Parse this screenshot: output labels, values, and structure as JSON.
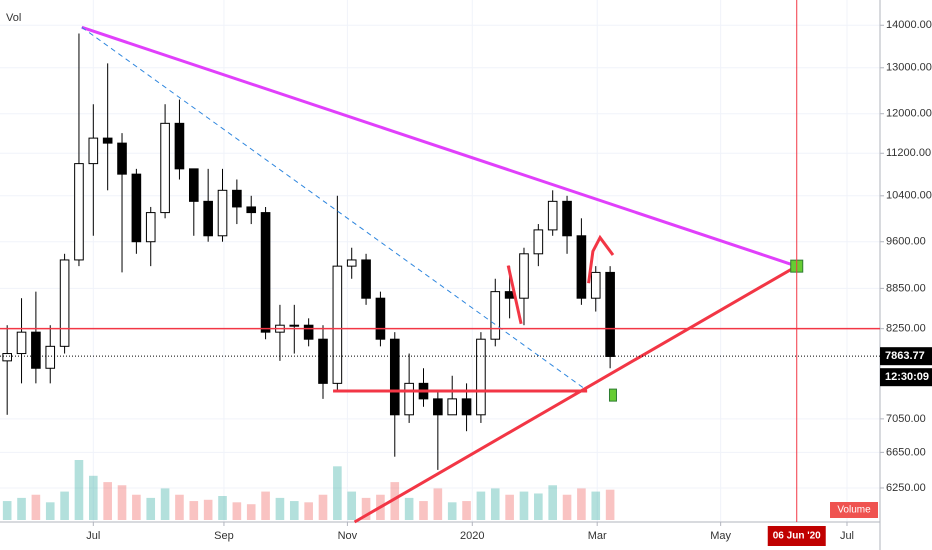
{
  "chart_data": {
    "type": "candlestick",
    "volume_label": "Vol",
    "volume_legend": "Volume",
    "last_price": {
      "value": 7863.77,
      "label": "7863.77"
    },
    "countdown": "12:30:09",
    "crosshair_date": "06 Jun '20",
    "crosshair_x": 55.0,
    "log_scale": true,
    "grid": true,
    "up_color": "#ffffff",
    "down_color": "#000000",
    "ylim": [
      5890,
      14630
    ],
    "xlim": [
      -0.5,
      60.8
    ],
    "yticks": [
      {
        "value": 6250,
        "label": "6250.00"
      },
      {
        "value": 6650,
        "label": "6650.00"
      },
      {
        "value": 7050,
        "label": "7050.00"
      },
      {
        "value": 8250,
        "label": "8250.00"
      },
      {
        "value": 8850,
        "label": "8850.00"
      },
      {
        "value": 9600,
        "label": "9600.00"
      },
      {
        "value": 10400,
        "label": "10400.00"
      },
      {
        "value": 11200,
        "label": "11200.00"
      },
      {
        "value": 12000,
        "label": "12000.00"
      },
      {
        "value": 13000,
        "label": "13000.00"
      },
      {
        "value": 14000,
        "label": "14000.00"
      }
    ],
    "xticks": [
      {
        "value": 6.0,
        "label": "Jul"
      },
      {
        "value": 15.1,
        "label": "Sep"
      },
      {
        "value": 23.7,
        "label": "Nov"
      },
      {
        "value": 32.4,
        "label": "2020"
      },
      {
        "value": 41.1,
        "label": "Mar"
      },
      {
        "value": 49.7,
        "label": "May"
      },
      {
        "value": 58.5,
        "label": "Jul"
      }
    ],
    "ohlc": [
      [
        7800,
        8300,
        7100,
        7900
      ],
      [
        7900,
        8700,
        7500,
        8200
      ],
      [
        8200,
        8800,
        7500,
        7700
      ],
      [
        7700,
        8300,
        7500,
        8000
      ],
      [
        8000,
        9400,
        7900,
        9300
      ],
      [
        9300,
        13800,
        9200,
        11000
      ],
      [
        11000,
        12200,
        9700,
        11500
      ],
      [
        11500,
        13100,
        10500,
        11400
      ],
      [
        11400,
        11600,
        9100,
        10800
      ],
      [
        10800,
        10900,
        9400,
        9600
      ],
      [
        9600,
        10200,
        9200,
        10100
      ],
      [
        10100,
        12200,
        10000,
        11800
      ],
      [
        11800,
        12300,
        10700,
        10900
      ],
      [
        10900,
        10900,
        9700,
        10300
      ],
      [
        10300,
        10900,
        9600,
        9700
      ],
      [
        9700,
        10900,
        9600,
        10500
      ],
      [
        10500,
        10700,
        9900,
        10200
      ],
      [
        10200,
        10400,
        9900,
        10100
      ],
      [
        10100,
        10200,
        8100,
        8200
      ],
      [
        8200,
        8600,
        7800,
        8300
      ],
      [
        8300,
        8600,
        7900,
        8300
      ],
      [
        8300,
        8400,
        8000,
        8100
      ],
      [
        8100,
        8300,
        7300,
        7500
      ],
      [
        7500,
        10400,
        7400,
        9200
      ],
      [
        9200,
        9500,
        9000,
        9300
      ],
      [
        9300,
        9400,
        8600,
        8700
      ],
      [
        8700,
        8800,
        8000,
        8100
      ],
      [
        8100,
        8200,
        6600,
        7100
      ],
      [
        7100,
        7900,
        7000,
        7500
      ],
      [
        7500,
        7700,
        7200,
        7300
      ],
      [
        7300,
        7400,
        6450,
        7100
      ],
      [
        7100,
        7600,
        7100,
        7300
      ],
      [
        7300,
        7500,
        6900,
        7100
      ],
      [
        7100,
        8200,
        7000,
        8100
      ],
      [
        8100,
        9000,
        8000,
        8800
      ],
      [
        8800,
        9200,
        8400,
        8700
      ],
      [
        8700,
        9500,
        8300,
        9400
      ],
      [
        9400,
        9900,
        9200,
        9800
      ],
      [
        9800,
        10500,
        9700,
        10300
      ],
      [
        10300,
        10400,
        9400,
        9700
      ],
      [
        9700,
        10000,
        8600,
        8700
      ],
      [
        8700,
        9200,
        8500,
        9100
      ],
      [
        9100,
        9200,
        7700,
        7860
      ]
    ],
    "volumes": [
      30,
      35,
      40,
      28,
      45,
      95,
      70,
      60,
      55,
      40,
      35,
      50,
      40,
      30,
      32,
      38,
      28,
      25,
      45,
      35,
      30,
      28,
      40,
      85,
      45,
      35,
      40,
      60,
      35,
      30,
      50,
      28,
      30,
      45,
      50,
      40,
      45,
      42,
      55,
      40,
      50,
      45,
      48
    ],
    "drawings": [
      {
        "color": "#e040fb",
        "width": 3,
        "dashed": false,
        "points": [
          [
            5.2,
            13950
          ],
          [
            55.0,
            9200
          ]
        ]
      },
      {
        "color": "#2e86de",
        "width": 1,
        "dashed": true,
        "points": [
          [
            5.2,
            13950
          ],
          [
            40.3,
            7420
          ]
        ]
      },
      {
        "color": "#f23645",
        "width": 1.5,
        "dashed": false,
        "points": [
          [
            -0.5,
            8250
          ],
          [
            60.8,
            8250
          ]
        ]
      },
      {
        "color": "#f23645",
        "width": 3,
        "dashed": false,
        "points": [
          [
            24.2,
            5890
          ],
          [
            55.0,
            9200
          ]
        ]
      },
      {
        "color": "#f23645",
        "width": 3,
        "dashed": false,
        "points": [
          [
            22.7,
            7400
          ],
          [
            40.4,
            7400
          ]
        ]
      },
      {
        "color": "#f23645",
        "width": 3,
        "dashed": false,
        "points": [
          [
            34.9,
            9210
          ],
          [
            35.8,
            8320
          ]
        ]
      },
      {
        "color": "#f23645",
        "width": 3,
        "dashed": false,
        "points": [
          [
            40.5,
            8930
          ],
          [
            40.8,
            9440
          ],
          [
            41.3,
            9670
          ],
          [
            42.2,
            9380
          ]
        ]
      }
    ],
    "anchors": [
      [
        55.0,
        9200
      ],
      [
        42.2,
        7380
      ]
    ]
  }
}
